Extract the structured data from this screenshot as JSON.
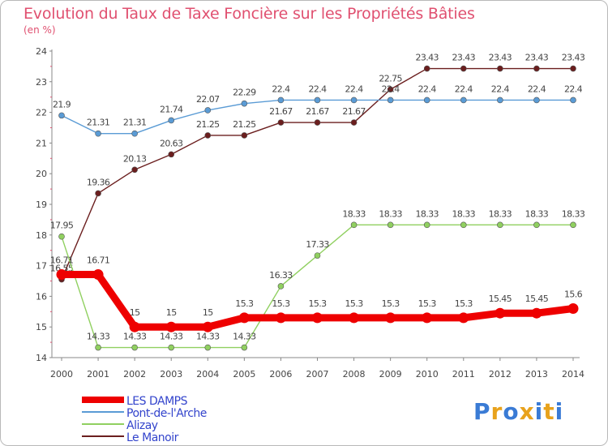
{
  "title": "Evolution du Taux de Taxe Foncière sur les Propriétés Bâties",
  "unit_label": "(en %)",
  "brand": {
    "letters": [
      "P",
      "r",
      "o",
      "x",
      "i",
      "t",
      "i"
    ],
    "colors": [
      "#3a7bd5",
      "#e8a21c",
      "#3a7bd5",
      "#e8a21c",
      "#3a7bd5",
      "#e8a21c",
      "#3a7bd5"
    ]
  },
  "chart_data": {
    "type": "line",
    "title": "Evolution du Taux de Taxe Foncière sur les Propriétés Bâties",
    "ylabel": "(en %)",
    "xlabel": "",
    "x": [
      "2000",
      "2001",
      "2002",
      "2003",
      "2004",
      "2005",
      "2006",
      "2007",
      "2008",
      "2009",
      "2010",
      "2011",
      "2012",
      "2013",
      "2014"
    ],
    "ylim": [
      14,
      24
    ],
    "yticks": [
      "14",
      "15",
      "16",
      "17",
      "18",
      "19",
      "20",
      "21",
      "22",
      "23",
      "24"
    ],
    "grid": false,
    "legend_position": "bottom-left",
    "series": [
      {
        "name": "Le Manoir",
        "color": "#6b1e1e",
        "values": [
          16.55,
          19.36,
          20.13,
          20.63,
          21.25,
          21.25,
          21.67,
          21.67,
          21.67,
          22.75,
          23.43,
          23.43,
          23.43,
          23.43,
          23.43
        ],
        "labels": [
          "16.55",
          "19.36",
          "20.13",
          "20.63",
          "21.25",
          "21.25",
          "21.67",
          "21.67",
          "21.67",
          "22.75",
          "23.43",
          "23.43",
          "23.43",
          "23.43",
          "23.43"
        ]
      },
      {
        "name": "Alizay",
        "color": "#90d060",
        "values": [
          17.95,
          14.33,
          14.33,
          14.33,
          14.33,
          14.33,
          16.33,
          17.33,
          18.33,
          18.33,
          18.33,
          18.33,
          18.33,
          18.33,
          18.33
        ],
        "labels": [
          "17.95",
          "14.33",
          "14.33",
          "14.33",
          "14.33",
          "14.33",
          "16.33",
          "17.33",
          "18.33",
          "18.33",
          "18.33",
          "18.33",
          "18.33",
          "18.33",
          "18.33"
        ]
      },
      {
        "name": "Pont-de-l'Arche",
        "color": "#5a9bd5",
        "values": [
          21.9,
          21.31,
          21.31,
          21.74,
          22.07,
          22.29,
          22.4,
          22.4,
          22.4,
          22.4,
          22.4,
          22.4,
          22.4,
          22.4,
          22.4
        ],
        "labels": [
          "21.9",
          "21.31",
          "21.31",
          "21.74",
          "22.07",
          "22.29",
          "22.4",
          "22.4",
          "22.4",
          "22.4",
          "22.4",
          "22.4",
          "22.4",
          "22.4",
          "22.4"
        ]
      },
      {
        "name": "LES DAMPS",
        "color": "#ee0000",
        "values": [
          16.71,
          16.71,
          15,
          15,
          15,
          15.3,
          15.3,
          15.3,
          15.3,
          15.3,
          15.3,
          15.3,
          15.45,
          15.45,
          15.6
        ],
        "labels": [
          "16.71",
          "16.71",
          "15",
          "15",
          "15",
          "15.3",
          "15.3",
          "15.3",
          "15.3",
          "15.3",
          "15.3",
          "15.3",
          "15.45",
          "15.45",
          "15.6"
        ]
      }
    ],
    "legend": [
      {
        "name": "LES DAMPS",
        "color": "#ee0000"
      },
      {
        "name": "Pont-de-l'Arche",
        "color": "#5a9bd5"
      },
      {
        "name": "Alizay",
        "color": "#90d060"
      },
      {
        "name": "Le Manoir",
        "color": "#6b1e1e"
      }
    ]
  }
}
